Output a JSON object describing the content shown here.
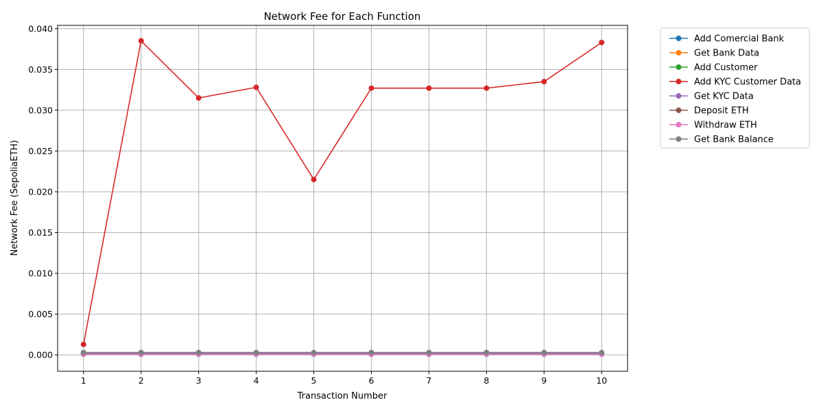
{
  "chart_data": {
    "type": "line",
    "title": "Network Fee for Each Function",
    "xlabel": "Transaction Number",
    "ylabel": "Network Fee (SepoliaETH)",
    "x": [
      1,
      2,
      3,
      4,
      5,
      6,
      7,
      8,
      9,
      10
    ],
    "xticks": [
      "1",
      "2",
      "3",
      "4",
      "5",
      "6",
      "7",
      "8",
      "9",
      "10"
    ],
    "yticks": [
      "0.000",
      "0.005",
      "0.010",
      "0.015",
      "0.020",
      "0.025",
      "0.030",
      "0.035",
      "0.040"
    ],
    "ytick_values": [
      0,
      0.005,
      0.01,
      0.015,
      0.02,
      0.025,
      0.03,
      0.035,
      0.04
    ],
    "xlim": [
      0.55,
      10.45
    ],
    "ylim": [
      -0.002,
      0.0404
    ],
    "grid": true,
    "legend_position": "outside-top-right",
    "marker": "circle",
    "series": [
      {
        "name": "Add Comercial Bank",
        "color": "#1f77b4",
        "values": [
          0.0001,
          0.0001,
          0.0001,
          0.0001,
          0.0001,
          0.0001,
          0.0001,
          0.0001,
          0.0001,
          0.0001
        ]
      },
      {
        "name": "Get Bank Data",
        "color": "#ff7f0e",
        "values": [
          0.0002,
          0.0002,
          0.0002,
          0.0002,
          0.0002,
          0.0002,
          0.0002,
          0.0002,
          0.0002,
          0.0002
        ]
      },
      {
        "name": "Add Customer",
        "color": "#2ca02c",
        "values": [
          0.0001,
          0.0001,
          0.0001,
          0.0001,
          0.0001,
          0.0001,
          0.0001,
          0.0001,
          0.0001,
          0.0001
        ]
      },
      {
        "name": "Add KYC Customer Data",
        "color": "#d62728",
        "values": [
          0.0013,
          0.0385,
          0.0315,
          0.0328,
          0.0215,
          0.0327,
          0.0327,
          0.0327,
          0.0335,
          0.0383
        ]
      },
      {
        "name": "Get KYC Data",
        "color": "#9467bd",
        "values": [
          0.0002,
          0.0002,
          0.0002,
          0.0002,
          0.0002,
          0.0002,
          0.0002,
          0.0002,
          0.0002,
          0.0002
        ]
      },
      {
        "name": "Deposit ETH",
        "color": "#8c564b",
        "values": [
          0.0001,
          0.0001,
          0.0001,
          0.0001,
          0.0001,
          0.0001,
          0.0001,
          0.0001,
          0.0001,
          0.0001
        ]
      },
      {
        "name": "Withdraw ETH",
        "color": "#e377c2",
        "values": [
          0.0001,
          0.0001,
          0.0001,
          0.0001,
          0.0001,
          0.0001,
          0.0001,
          0.0001,
          0.0001,
          0.0001
        ]
      },
      {
        "name": "Get Bank Balance",
        "color": "#7f7f7f",
        "values": [
          0.0003,
          0.0003,
          0.0003,
          0.0003,
          0.0003,
          0.0003,
          0.0003,
          0.0003,
          0.0003,
          0.0003
        ]
      }
    ]
  }
}
